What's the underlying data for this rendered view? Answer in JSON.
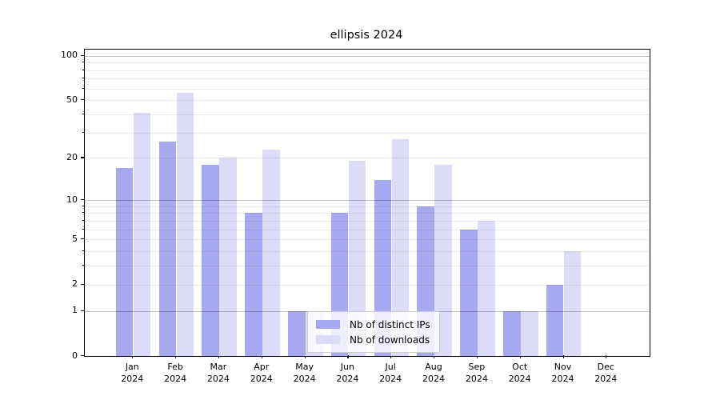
{
  "chart_data": {
    "type": "bar",
    "title": "ellipsis 2024",
    "categories": [
      "Jan",
      "Feb",
      "Mar",
      "Apr",
      "May",
      "Jun",
      "Jul",
      "Aug",
      "Sep",
      "Oct",
      "Nov",
      "Dec"
    ],
    "category_year": "2024",
    "series": [
      {
        "name": "Nb of distinct IPs",
        "color": "#a8a8f0",
        "values": [
          17,
          26,
          18,
          8,
          1,
          8,
          14,
          9,
          6,
          1,
          2,
          0
        ]
      },
      {
        "name": "Nb of downloads",
        "color": "#dcdcf8",
        "values": [
          41,
          56,
          20,
          23,
          1,
          19,
          27,
          18,
          7,
          1,
          4,
          0
        ]
      }
    ],
    "y_axis": {
      "scale": "log10(1+v)",
      "ticks": [
        0,
        1,
        2,
        5,
        10,
        20,
        50,
        100
      ],
      "major_gridlines": [
        1,
        10,
        100
      ],
      "minor_gridlines": [
        2,
        3,
        4,
        5,
        6,
        7,
        8,
        9,
        20,
        30,
        40,
        50,
        60,
        70,
        80,
        90
      ],
      "ylim": [
        0,
        110
      ],
      "grid": "horizontal"
    },
    "legend": {
      "position": "lower-center"
    }
  }
}
